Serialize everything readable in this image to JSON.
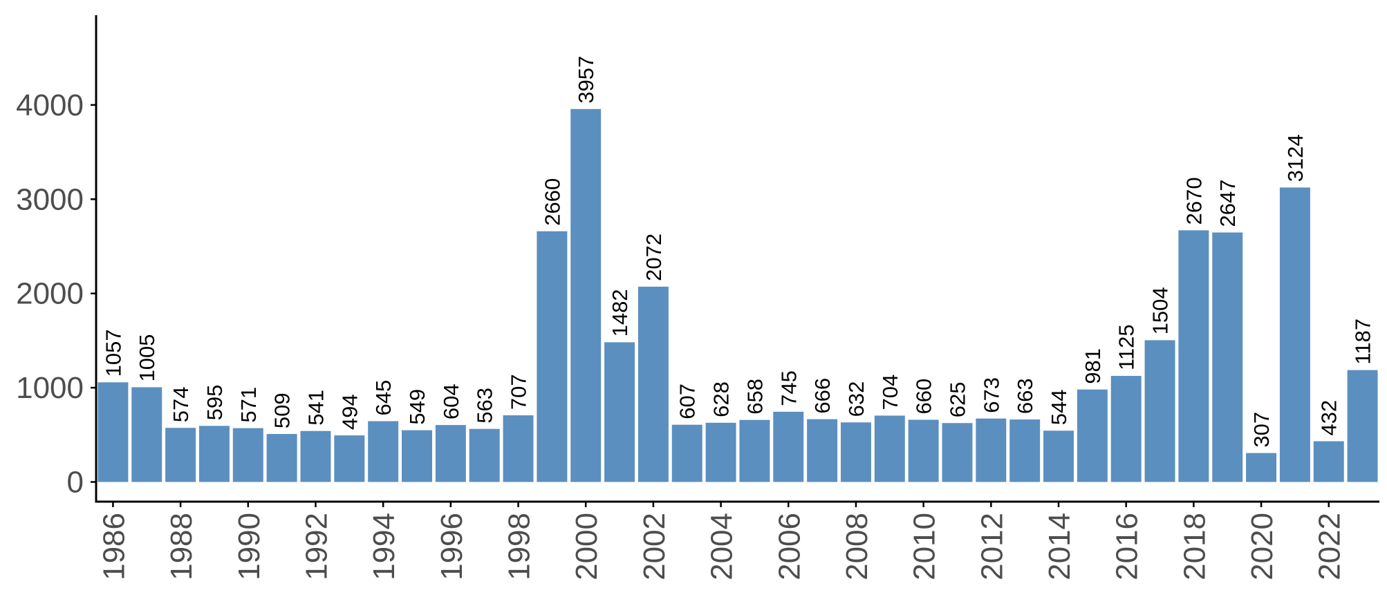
{
  "chart_data": {
    "type": "bar",
    "title": "",
    "xlabel": "",
    "ylabel": "",
    "bar_color": "#5b8fc0",
    "ylim": [
      0,
      4900
    ],
    "y_ticks": [
      0,
      1000,
      2000,
      3000,
      4000
    ],
    "x_tick_labels": [
      "1986",
      "1988",
      "1990",
      "1992",
      "1994",
      "1996",
      "1998",
      "2000",
      "2002",
      "2004",
      "2006",
      "2008",
      "2010",
      "2012",
      "2014",
      "2016",
      "2018",
      "2020",
      "2022"
    ],
    "grid": false,
    "legend": "none",
    "categories": [
      "1986",
      "1987",
      "1988",
      "1989",
      "1990",
      "1991",
      "1992",
      "1993",
      "1994",
      "1995",
      "1996",
      "1997",
      "1998",
      "1999",
      "2000",
      "2001",
      "2002",
      "2003",
      "2004",
      "2005",
      "2006",
      "2007",
      "2008",
      "2009",
      "2010",
      "2011",
      "2012",
      "2013",
      "2014",
      "2015",
      "2016",
      "2017",
      "2018",
      "2019",
      "2020",
      "2021",
      "2022",
      "2023"
    ],
    "values": [
      1057,
      1005,
      574,
      595,
      571,
      509,
      541,
      494,
      645,
      549,
      604,
      563,
      707,
      2660,
      3957,
      1482,
      2072,
      607,
      628,
      658,
      745,
      666,
      632,
      704,
      660,
      625,
      673,
      663,
      544,
      981,
      1125,
      1504,
      2670,
      2647,
      307,
      3124,
      432,
      1187
    ]
  }
}
